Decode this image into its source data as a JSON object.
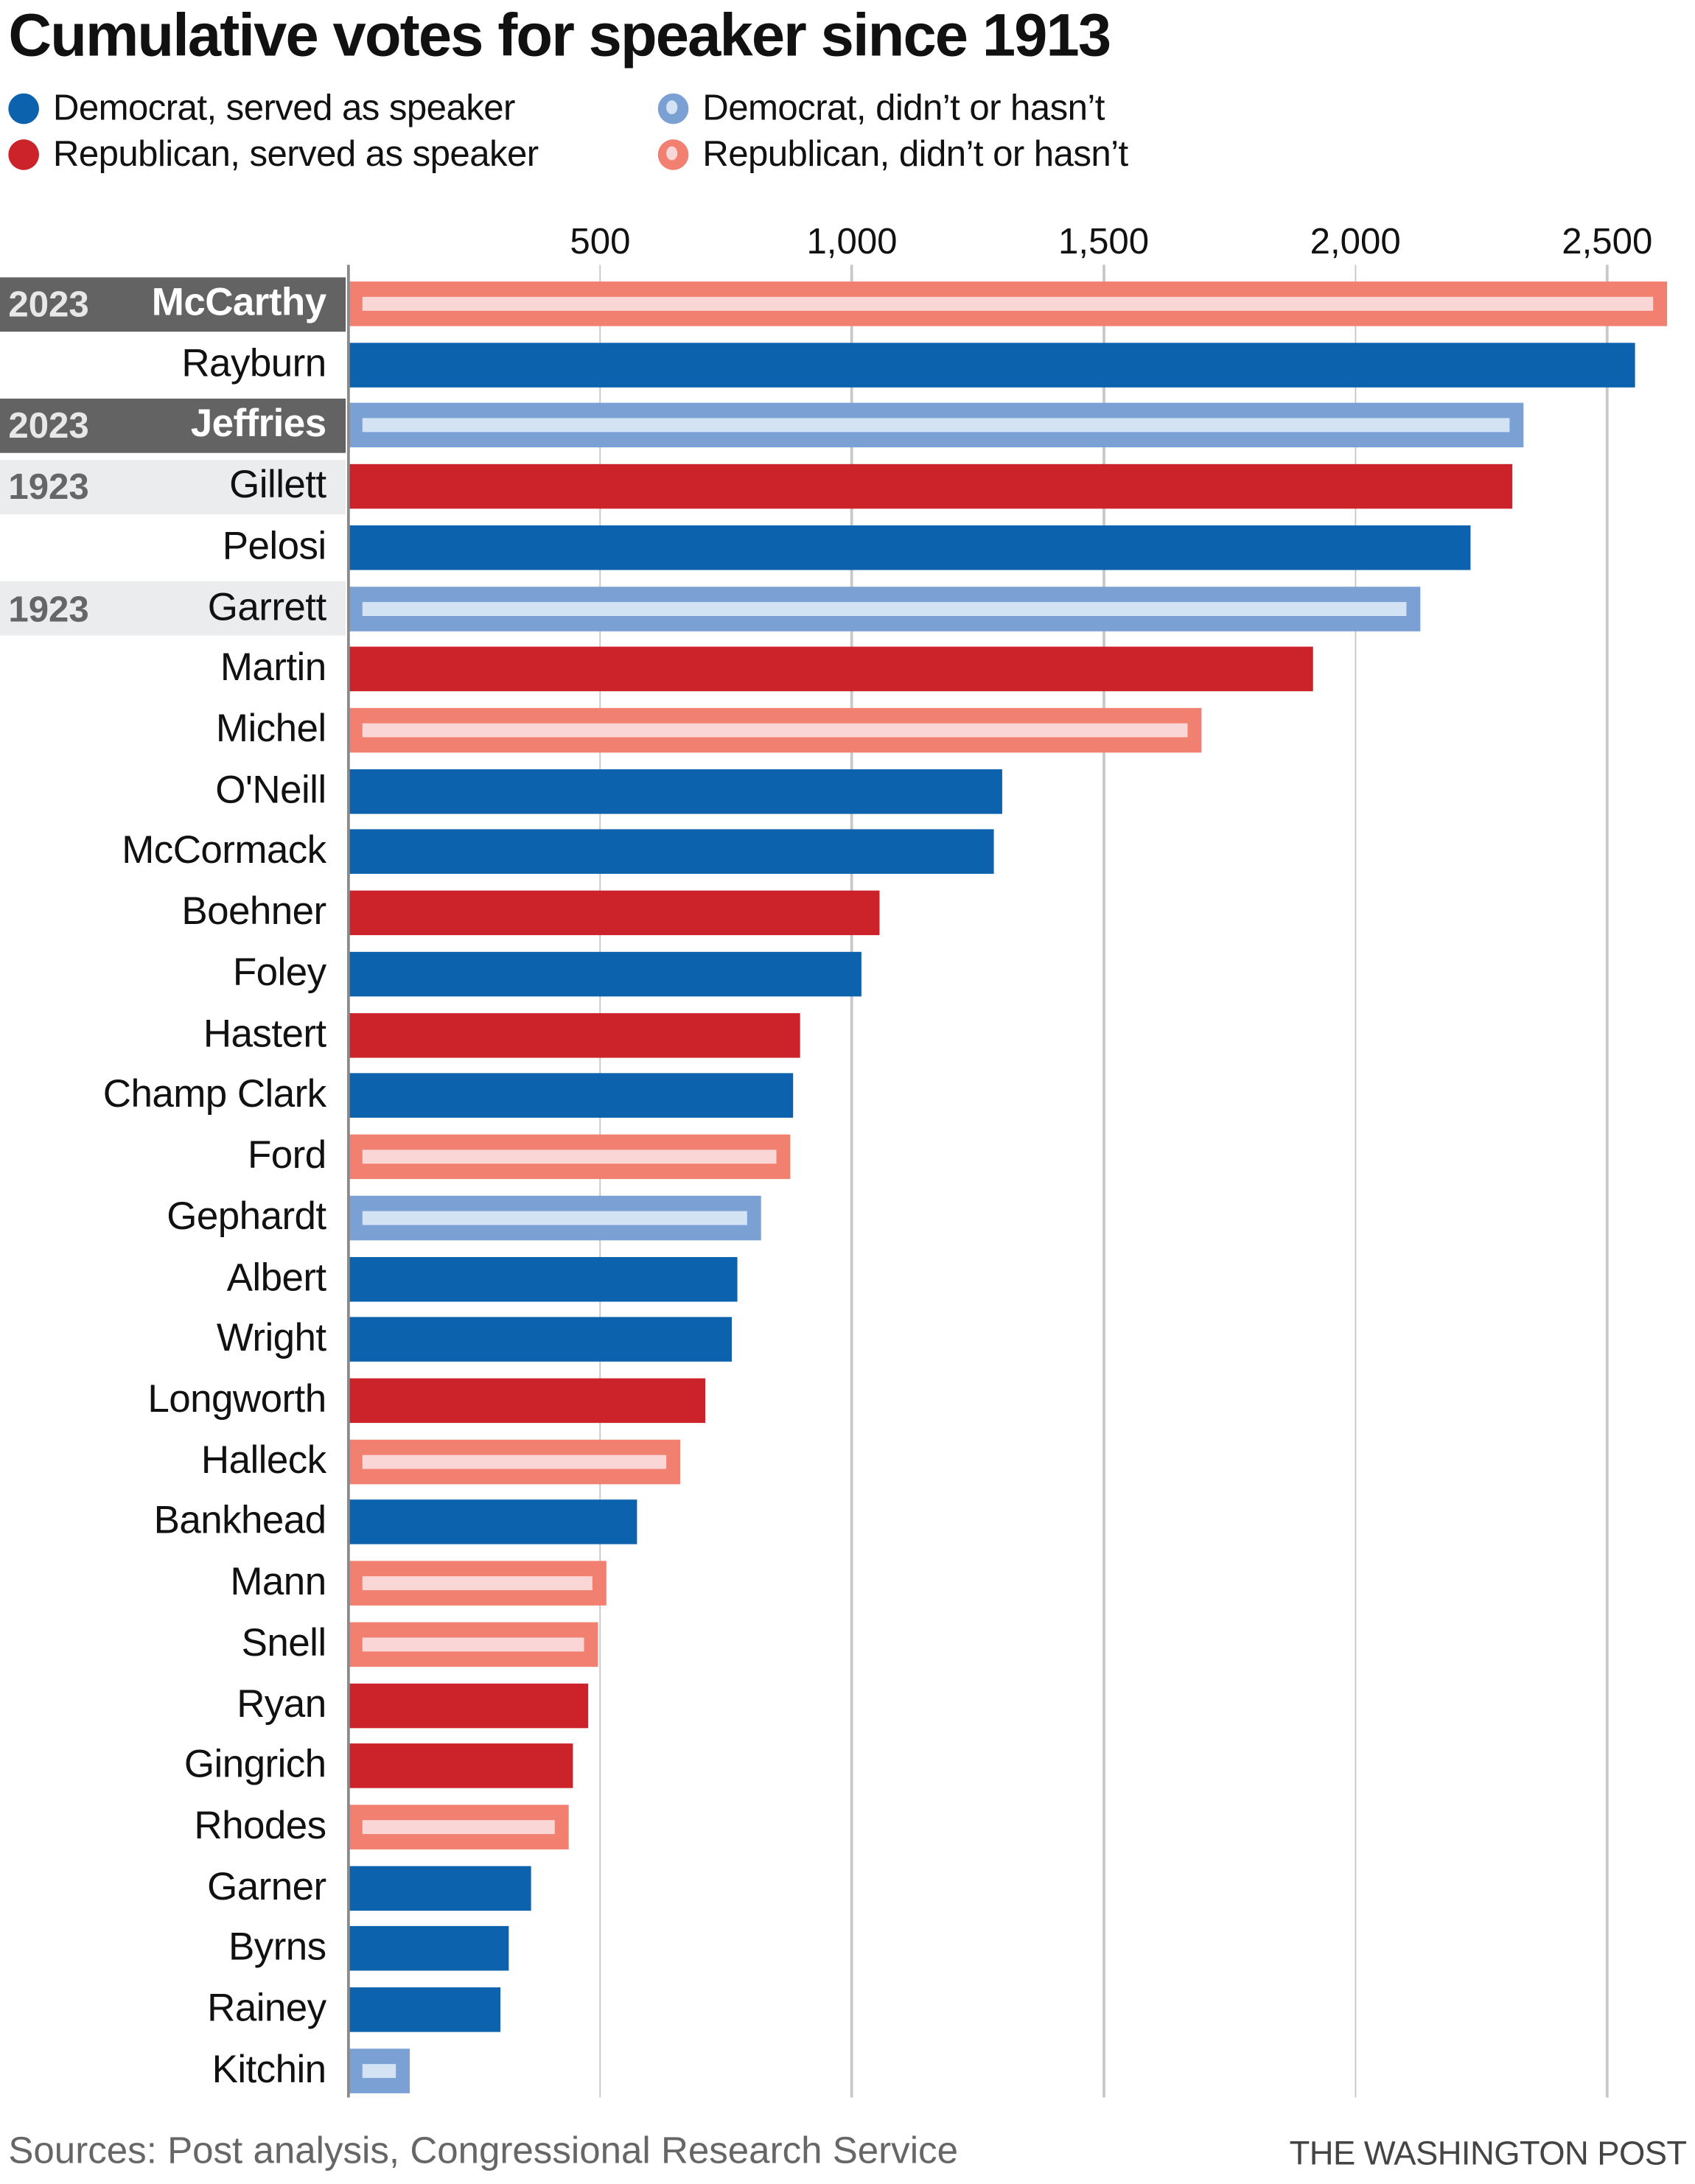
{
  "chart_data": {
    "type": "bar",
    "orientation": "horizontal",
    "title": "Cumulative votes for speaker since 1913",
    "xlabel": "",
    "ylabel": "",
    "xlim": [
      0,
      2620
    ],
    "xticks": [
      500,
      1000,
      1500,
      2000,
      2500
    ],
    "xtick_labels": [
      "500",
      "1,000",
      "1,500",
      "2,000",
      "2,500"
    ],
    "grid": true,
    "legend": [
      {
        "key": "dem_served",
        "label": "Democrat, served as speaker"
      },
      {
        "key": "dem_not",
        "label": "Democrat, didn’t or hasn’t"
      },
      {
        "key": "rep_served",
        "label": "Republican, served as speaker"
      },
      {
        "key": "rep_not",
        "label": "Republican, didn’t or hasn’t"
      }
    ],
    "legend_position": "top-left",
    "colors": {
      "dem_served": "#0d62ae",
      "dem_not": "#7ba1d4",
      "dem_not_inner": "#d3e3f3",
      "rep_served": "#cc2229",
      "rep_not": "#f28070",
      "rep_not_inner": "#fad6d6",
      "highlight_dark": "#636363",
      "highlight_light": "#ebecee"
    },
    "rows": [
      {
        "name": "McCarthy",
        "value": 2618,
        "group": "rep_not",
        "year": "2023",
        "highlight": "dark"
      },
      {
        "name": "Rayburn",
        "value": 2554,
        "group": "dem_served"
      },
      {
        "name": "Jeffries",
        "value": 2335,
        "group": "dem_not",
        "year": "2023",
        "highlight": "dark"
      },
      {
        "name": "Gillett",
        "value": 2313,
        "group": "rep_served",
        "year": "1923",
        "highlight": "light"
      },
      {
        "name": "Pelosi",
        "value": 2230,
        "group": "dem_served"
      },
      {
        "name": "Garrett",
        "value": 2130,
        "group": "dem_not",
        "year": "1923",
        "highlight": "light"
      },
      {
        "name": "Martin",
        "value": 1917,
        "group": "rep_served"
      },
      {
        "name": "Michel",
        "value": 1695,
        "group": "rep_not"
      },
      {
        "name": "O'Neill",
        "value": 1299,
        "group": "dem_served"
      },
      {
        "name": "McCormack",
        "value": 1283,
        "group": "dem_served"
      },
      {
        "name": "Boehner",
        "value": 1055,
        "group": "rep_served"
      },
      {
        "name": "Foley",
        "value": 1019,
        "group": "dem_served"
      },
      {
        "name": "Hastert",
        "value": 898,
        "group": "rep_served"
      },
      {
        "name": "Champ Clark",
        "value": 884,
        "group": "dem_served"
      },
      {
        "name": "Ford",
        "value": 878,
        "group": "rep_not"
      },
      {
        "name": "Gephardt",
        "value": 820,
        "group": "dem_not"
      },
      {
        "name": "Albert",
        "value": 773,
        "group": "dem_served"
      },
      {
        "name": "Wright",
        "value": 762,
        "group": "dem_served"
      },
      {
        "name": "Longworth",
        "value": 709,
        "group": "rep_served"
      },
      {
        "name": "Halleck",
        "value": 659,
        "group": "rep_not"
      },
      {
        "name": "Bankhead",
        "value": 573,
        "group": "dem_served"
      },
      {
        "name": "Mann",
        "value": 512,
        "group": "rep_not"
      },
      {
        "name": "Snell",
        "value": 496,
        "group": "rep_not"
      },
      {
        "name": "Ryan",
        "value": 476,
        "group": "rep_served"
      },
      {
        "name": "Gingrich",
        "value": 446,
        "group": "rep_served"
      },
      {
        "name": "Rhodes",
        "value": 438,
        "group": "rep_not"
      },
      {
        "name": "Garner",
        "value": 363,
        "group": "dem_served"
      },
      {
        "name": "Byrns",
        "value": 319,
        "group": "dem_served"
      },
      {
        "name": "Rainey",
        "value": 302,
        "group": "dem_served"
      },
      {
        "name": "Kitchin",
        "value": 122,
        "group": "dem_not"
      }
    ]
  },
  "footer": {
    "source": "Sources: Post analysis, Congressional Research Service",
    "credit": "THE WASHINGTON POST"
  }
}
